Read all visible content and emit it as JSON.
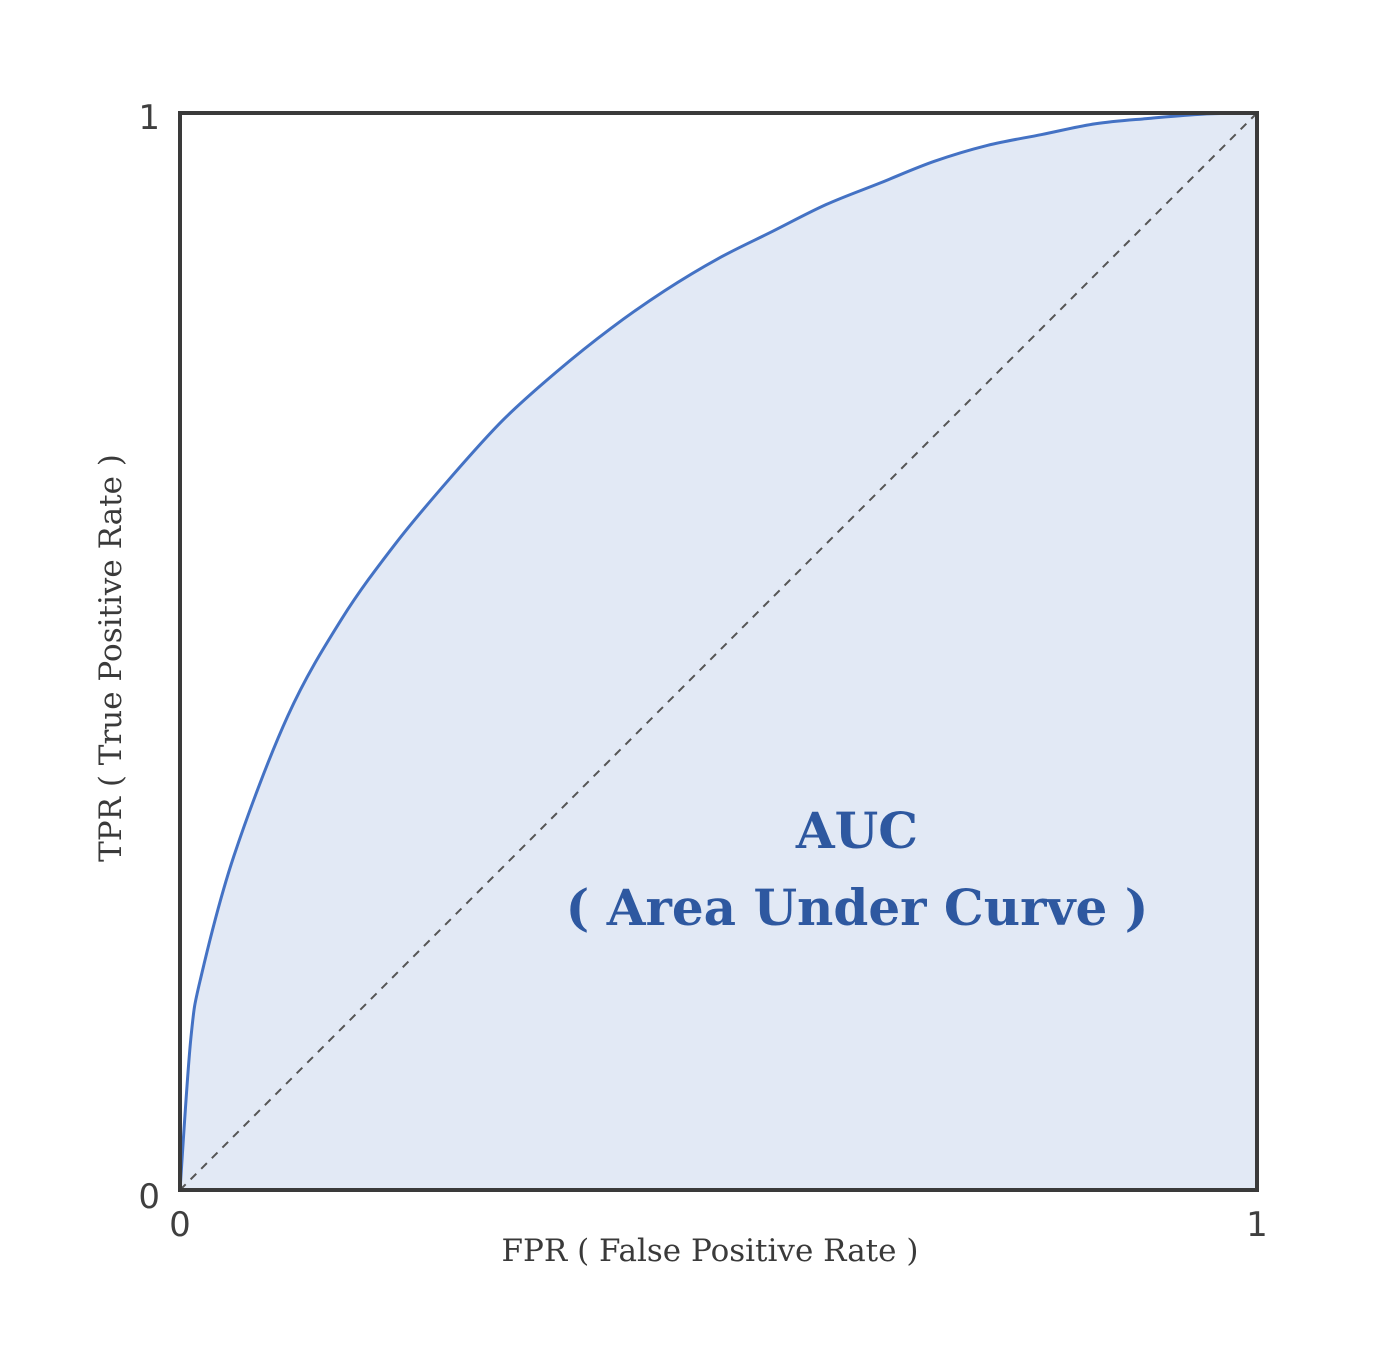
{
  "chart_data": {
    "type": "area",
    "title": "",
    "xlabel": "FPR ( False Positive Rate )",
    "ylabel": "TPR ( True Positive Rate )",
    "xlim": [
      0,
      1
    ],
    "ylim": [
      0,
      1
    ],
    "grid": false,
    "x_ticks": [
      "0",
      "1"
    ],
    "y_ticks": [
      "0",
      "1"
    ],
    "annotation": [
      "AUC",
      "( Area Under Curve )"
    ],
    "colors": {
      "curve": "#4472c4",
      "fill": "#e2e9f5",
      "diagonal": "#555555",
      "frame": "#3a3a3a",
      "annotation": "#2e58a0"
    },
    "series": [
      {
        "type": "line",
        "x": [
          0,
          0.01,
          0.02,
          0.05,
          0.1,
          0.15,
          0.2,
          0.25,
          0.3,
          0.35,
          0.4,
          0.45,
          0.5,
          0.55,
          0.6,
          0.65,
          0.7,
          0.75,
          0.8,
          0.85,
          0.9,
          0.95,
          1.0
        ],
        "y": [
          0,
          0.14,
          0.2,
          0.31,
          0.44,
          0.53,
          0.6,
          0.66,
          0.715,
          0.76,
          0.8,
          0.835,
          0.865,
          0.89,
          0.915,
          0.935,
          0.955,
          0.97,
          0.98,
          0.99,
          0.995,
          0.999,
          1.0
        ]
      },
      {
        "type": "diagonal",
        "x": [
          0,
          1
        ],
        "y": [
          0,
          1
        ]
      }
    ]
  }
}
